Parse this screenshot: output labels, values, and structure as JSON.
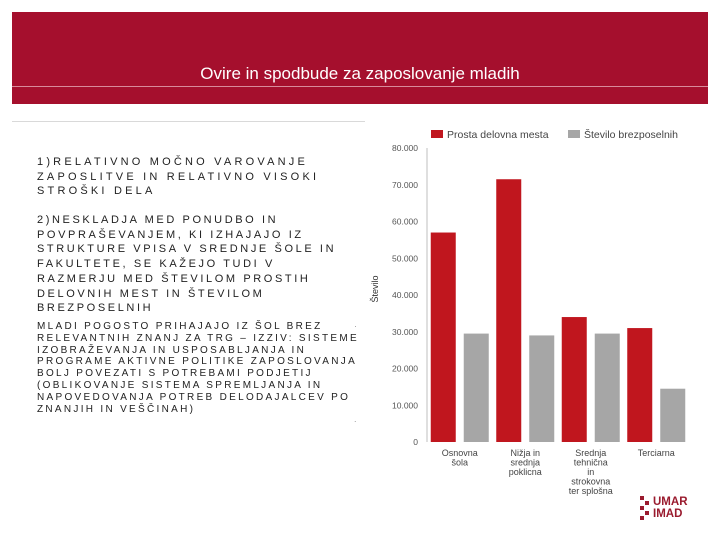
{
  "slide": {
    "title": "Ovire in spodbude za zaposlovanje mladih",
    "paragraphs": [
      "1)RELATIVNO MOČNO VAROVANJE ZAPOSLITVE IN RELATIVNO VISOKI STROŠKI DELA",
      "2)NESKLADJA MED PONUDBO IN POVPRAŠEVANJEM, KI IZHAJAJO IZ STRUKTURE VPISA V SREDNJE ŠOLE IN FAKULTETE, SE KAŽEJO TUDI V RAZMERJU MED ŠTEVILOM PROSTIH DELOVNIH MEST IN ŠTEVILOM BREZPOSELNIH",
      "MLADI POGOSTO PRIHAJAJO IZ ŠOL BREZ RELEVANTNIH ZNANJ ZA TRG – IZZIV: SISTEME IZOBRAŽEVANJA IN USPOSABLJANJA IN PROGRAME AKTIVNE POLITIKE ZAPOSLOVANJA BOLJ POVEZATI S POTREBAMI PODJETIJ (OBLIKOVANJE SISTEMA SPREMLJANJA IN NAPOVEDOVANJA POTREB DELODAJALCEV PO ZNANJIH IN VEŠČINAH)"
    ],
    "logo_text": "UMAR\nIMAD"
  },
  "colors": {
    "banner": "#a50f2d",
    "series_1": "#c0161e",
    "series_2": "#a6a6a6"
  },
  "chart_data": {
    "type": "bar",
    "categories": [
      "Osnovna šola",
      "Nižja in srednja poklicna",
      "Srednja tehnična in strokovna ter splošna",
      "Terciarna"
    ],
    "category_lines": [
      [
        "Osnovna",
        "šola"
      ],
      [
        "Nižja in",
        "srednja",
        "poklicna"
      ],
      [
        "Srednja",
        "tehnična",
        "in",
        "strokovna",
        "ter splošna"
      ],
      [
        "Terciarna"
      ]
    ],
    "series": [
      {
        "name": "Prosta delovna mesta",
        "values": [
          57000,
          71500,
          34000,
          31000
        ]
      },
      {
        "name": "Število brezposelnih",
        "values": [
          29500,
          29000,
          29500,
          14500
        ]
      }
    ],
    "ylabel": "Število",
    "ylim": [
      0,
      80000
    ],
    "yticks": [
      0,
      10000,
      20000,
      30000,
      40000,
      50000,
      60000,
      70000,
      80000
    ],
    "ytick_labels": [
      "0",
      "10.000",
      "20.000",
      "30.000",
      "40.000",
      "50.000",
      "60.000",
      "70.000",
      "80.000"
    ],
    "grid": false,
    "legend": "top"
  }
}
